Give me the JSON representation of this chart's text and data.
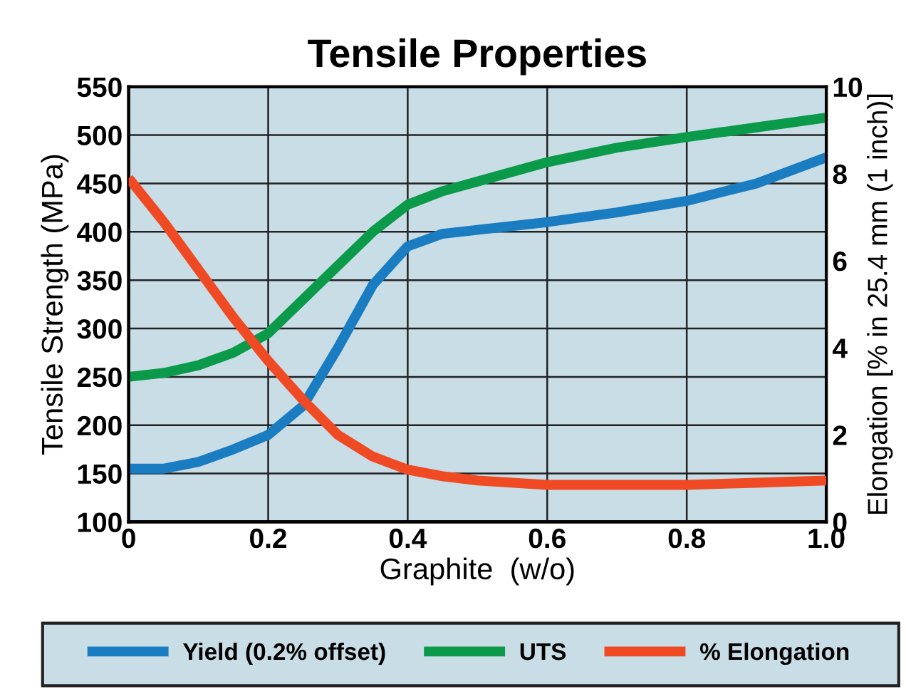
{
  "chart_data": {
    "type": "line",
    "title": "Tensile Properties",
    "xlabel": "Graphite  (w/o)",
    "ylabel": "Tensile Strength (MPa)",
    "y2label": "Elongation [% in 25.4 mm (1 inch)]",
    "xlim": [
      0,
      1.0
    ],
    "xticks": [
      0,
      0.2,
      0.4,
      0.6,
      0.8,
      {
        "value": 1.0,
        "label": "1.0"
      }
    ],
    "ylim": [
      100,
      550
    ],
    "yticks": [
      100,
      150,
      200,
      250,
      300,
      350,
      400,
      450,
      500,
      550
    ],
    "y2lim": [
      0,
      10
    ],
    "y2ticks": [
      0,
      2,
      4,
      6,
      8,
      10
    ],
    "grid": true,
    "legend": "bottom",
    "marker": "none",
    "line_style": "solid",
    "x": [
      0,
      0.05,
      0.1,
      0.15,
      0.2,
      0.25,
      0.3,
      0.35,
      0.4,
      0.45,
      0.5,
      0.6,
      0.7,
      0.8,
      0.9,
      1.0
    ],
    "series": [
      {
        "name": "Yield (0.2% offset)",
        "color": "#1a7cc1",
        "values": [
          155,
          155,
          162,
          175,
          190,
          220,
          280,
          345,
          385,
          398,
          402,
          410,
          420,
          432,
          450,
          477
        ]
      },
      {
        "name": "UTS",
        "color": "#0a9a4a",
        "values": [
          250,
          254,
          262,
          275,
          295,
          330,
          365,
          400,
          428,
          442,
          452,
          472,
          487,
          498,
          508,
          518
        ]
      },
      {
        "name": "% Elongation",
        "color": "#f04a24",
        "axis": "y2",
        "values": [
          7.9,
          6.9,
          5.8,
          4.7,
          3.7,
          2.8,
          2.0,
          1.5,
          1.2,
          1.05,
          0.95,
          0.85,
          0.85,
          0.85,
          0.9,
          0.95
        ]
      }
    ]
  }
}
